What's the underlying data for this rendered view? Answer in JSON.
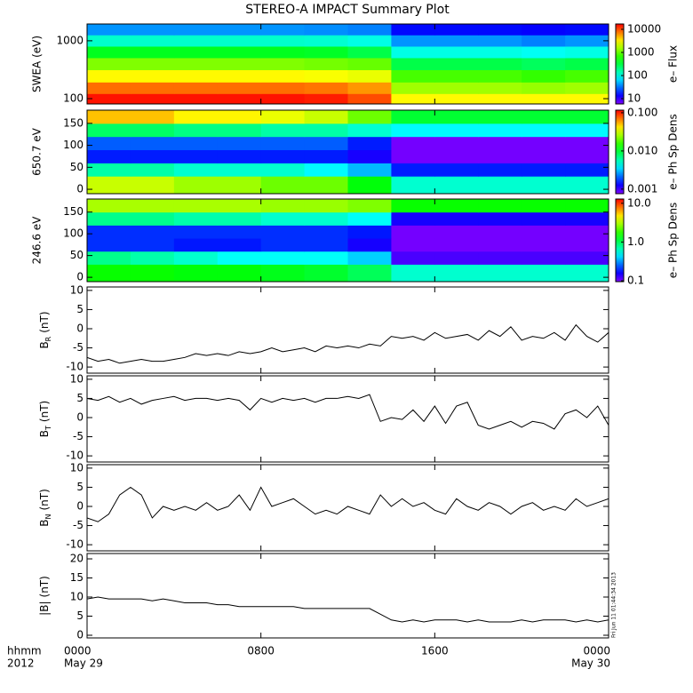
{
  "figure": {
    "title": "STEREO-A IMPACT Summary Plot",
    "xlim": [
      0,
      24
    ],
    "xticks": [
      {
        "value": 0,
        "label": "0000"
      },
      {
        "value": 8,
        "label": "0800"
      },
      {
        "value": 16,
        "label": "1600"
      },
      {
        "value": 24,
        "label": "0000"
      }
    ],
    "dates": [
      {
        "value": 0,
        "label": "May 29"
      },
      {
        "value": 24,
        "label": "May 30"
      }
    ],
    "time_format": "hhmm",
    "year": "2012",
    "timestamp": "Fri Jun 11 01:44:34 2013",
    "x": [
      0,
      0.5,
      1,
      1.5,
      2,
      2.5,
      3,
      3.5,
      4,
      4.5,
      5,
      5.5,
      6,
      6.5,
      7,
      7.5,
      8,
      8.5,
      9,
      9.5,
      10,
      10.5,
      11,
      11.5,
      12,
      12.5,
      13,
      13.5,
      14,
      14.5,
      15,
      15.5,
      16,
      16.5,
      17,
      17.5,
      18,
      18.5,
      19,
      19.5,
      20,
      20.5,
      21,
      21.5,
      22,
      22.5,
      23,
      23.5,
      24
    ]
  },
  "chart_data": [
    {
      "type": "heatmap",
      "ylabel": "SWEA (eV)",
      "log": true,
      "ylim": [
        81,
        1950
      ],
      "yticks": [
        100,
        1000
      ],
      "x": [
        1,
        3,
        5,
        7,
        9,
        11,
        13,
        15,
        17,
        19,
        21,
        23
      ],
      "y": [
        100,
        150,
        250,
        400,
        650,
        1000,
        1600
      ],
      "zlim": [
        5.9,
        17000
      ],
      "zticks": [
        10,
        100,
        1000,
        10000
      ],
      "zlabel": "e– Flux",
      "values": [
        [
          15000,
          15000,
          15000,
          15000,
          15000,
          14000,
          10000,
          3000,
          3000,
          3000,
          3000,
          3000
        ],
        [
          8000,
          8000,
          8000,
          8000,
          8000,
          7500,
          6000,
          1500,
          1500,
          1500,
          1400,
          1500
        ],
        [
          3000,
          3000,
          3000,
          3000,
          3000,
          2800,
          2500,
          800,
          800,
          800,
          700,
          800
        ],
        [
          1200,
          1200,
          1200,
          1200,
          1200,
          1100,
          1000,
          300,
          300,
          300,
          260,
          300
        ],
        [
          400,
          400,
          400,
          400,
          400,
          380,
          300,
          100,
          100,
          100,
          90,
          100
        ],
        [
          120,
          120,
          120,
          120,
          120,
          115,
          100,
          40,
          40,
          40,
          35,
          40
        ],
        [
          40,
          40,
          40,
          40,
          40,
          38,
          35,
          15,
          15,
          15,
          14,
          15
        ]
      ]
    },
    {
      "type": "heatmap",
      "ylabel": "650.7 eV",
      "log": false,
      "ylim": [
        -10,
        180
      ],
      "yticks": [
        0,
        50,
        100,
        150
      ],
      "x": [
        1,
        3,
        5,
        7,
        9,
        11,
        13,
        15,
        17,
        19,
        21,
        23
      ],
      "y": [
        15,
        45,
        75,
        105,
        135,
        165
      ],
      "zlim": [
        0.00076,
        0.117
      ],
      "zticks": [
        {
          "value": 0.001,
          "label": "0.001"
        },
        {
          "value": 0.01,
          "label": "0.010"
        },
        {
          "value": 0.1,
          "label": "0.100"
        }
      ],
      "zlabel": "e– Ph Sp Dens",
      "values": [
        [
          0.03,
          0.03,
          0.025,
          0.025,
          0.02,
          0.02,
          0.012,
          0.005,
          0.005,
          0.005,
          0.005,
          0.005
        ],
        [
          0.006,
          0.006,
          0.005,
          0.005,
          0.005,
          0.004,
          0.003,
          0.0015,
          0.0015,
          0.0015,
          0.0015,
          0.0015
        ],
        [
          0.0015,
          0.0015,
          0.0015,
          0.0015,
          0.0015,
          0.0015,
          0.0012,
          0.0008,
          0.0008,
          0.0008,
          0.0008,
          0.0008
        ],
        [
          0.002,
          0.002,
          0.002,
          0.002,
          0.002,
          0.002,
          0.0015,
          0.0008,
          0.0008,
          0.0008,
          0.0008,
          0.0008
        ],
        [
          0.008,
          0.008,
          0.007,
          0.007,
          0.006,
          0.006,
          0.005,
          0.004,
          0.004,
          0.004,
          0.004,
          0.004
        ],
        [
          0.05,
          0.05,
          0.04,
          0.04,
          0.035,
          0.03,
          0.02,
          0.01,
          0.01,
          0.01,
          0.01,
          0.01
        ]
      ]
    },
    {
      "type": "heatmap",
      "ylabel": "246.6 eV",
      "log": false,
      "ylim": [
        -10,
        180
      ],
      "yticks": [
        0,
        50,
        100,
        150
      ],
      "x": [
        1,
        3,
        5,
        7,
        9,
        11,
        13,
        15,
        17,
        19,
        21,
        23
      ],
      "y": [
        15,
        45,
        75,
        105,
        135,
        165
      ],
      "zlim": [
        0.095,
        12.9
      ],
      "zticks": [
        0.1,
        {
          "value": 1,
          "label": "1.0"
        },
        {
          "value": 10,
          "label": "10.0"
        }
      ],
      "zlabel": "e– Ph Sp Dens",
      "values": [
        [
          1.5,
          1.5,
          1.4,
          1.4,
          1.3,
          1.2,
          1,
          0.6,
          0.6,
          0.6,
          0.6,
          0.6
        ],
        [
          0.8,
          0.7,
          0.6,
          0.5,
          0.5,
          0.5,
          0.4,
          0.12,
          0.12,
          0.12,
          0.12,
          0.12
        ],
        [
          0.2,
          0.2,
          0.18,
          0.18,
          0.2,
          0.2,
          0.15,
          0.1,
          0.1,
          0.1,
          0.1,
          0.1
        ],
        [
          0.2,
          0.2,
          0.2,
          0.2,
          0.2,
          0.2,
          0.18,
          0.1,
          0.1,
          0.1,
          0.1,
          0.1
        ],
        [
          0.8,
          0.8,
          0.7,
          0.7,
          0.6,
          0.6,
          0.5,
          0.15,
          0.15,
          0.15,
          0.15,
          0.15
        ],
        [
          3,
          3,
          3,
          3,
          2.8,
          2.8,
          2.5,
          1.5,
          1.5,
          1.5,
          1.5,
          1.5
        ]
      ]
    },
    {
      "type": "line",
      "ylabel": {
        "text": "B",
        "sub": "R",
        "unit": "(nT)"
      },
      "ylim": [
        -11.6,
        10.9
      ],
      "yticks": [
        -10,
        -5,
        0,
        5,
        10
      ],
      "values": [
        -7.5,
        -8.5,
        -8,
        -9,
        -8.5,
        -8,
        -8.5,
        -8.5,
        -8,
        -7.5,
        -6.5,
        -7,
        -6.5,
        -7,
        -6,
        -6.5,
        -6,
        -5,
        -6,
        -5.5,
        -5,
        -6,
        -4.5,
        -5,
        -4.5,
        -5,
        -4,
        -4.5,
        -2,
        -2.5,
        -2,
        -3,
        -1,
        -2.5,
        -2,
        -1.5,
        -3,
        -0.5,
        -2,
        0.5,
        -3,
        -2,
        -2.5,
        -1,
        -3,
        1,
        -2,
        -3.5,
        -1
      ]
    },
    {
      "type": "line",
      "ylabel": {
        "text": "B",
        "sub": "T",
        "unit": "(nT)"
      },
      "ylim": [
        -11.6,
        10.9
      ],
      "yticks": [
        -10,
        -5,
        0,
        5,
        10
      ],
      "values": [
        5,
        4.5,
        5.5,
        4,
        5,
        3.5,
        4.5,
        5,
        5.5,
        4.5,
        5,
        5,
        4.5,
        5,
        4.5,
        2,
        5,
        4,
        5,
        4.5,
        5,
        4,
        5,
        5,
        5.5,
        5,
        6,
        -1,
        0,
        -0.5,
        2,
        -1,
        3,
        -1.5,
        3,
        4,
        -2,
        -3,
        -2,
        -1,
        -2.5,
        -1,
        -1.5,
        -3,
        1,
        2,
        0,
        3,
        -2
      ]
    },
    {
      "type": "line",
      "ylabel": {
        "text": "B",
        "sub": "N",
        "unit": "(nT)"
      },
      "ylim": [
        -11.6,
        10.9
      ],
      "yticks": [
        -10,
        -5,
        0,
        5,
        10
      ],
      "values": [
        -3,
        -4,
        -2,
        3,
        5,
        3,
        -3,
        0,
        -1,
        0,
        -1,
        1,
        -1,
        0,
        3,
        -1,
        5,
        0,
        1,
        2,
        0,
        -2,
        -1,
        -2,
        0,
        -1,
        -2,
        3,
        0,
        2,
        0,
        1,
        -1,
        -2,
        2,
        0,
        -1,
        1,
        0,
        -2,
        0,
        1,
        -1,
        0,
        -1,
        2,
        0,
        1,
        2
      ]
    },
    {
      "type": "line",
      "ylabel": {
        "text": "|B|",
        "sub": "",
        "unit": "(nT)"
      },
      "ylim": [
        -0.7,
        21.4
      ],
      "yticks": [
        0,
        5,
        10,
        15,
        20
      ],
      "values": [
        9.5,
        10,
        9.5,
        9.5,
        9.5,
        9.5,
        9,
        9.5,
        9,
        8.5,
        8.5,
        8.5,
        8,
        8,
        7.5,
        7.5,
        7.5,
        7.5,
        7.5,
        7.5,
        7,
        7,
        7,
        7,
        7,
        7,
        7,
        5.5,
        4,
        3.5,
        4,
        3.5,
        4,
        4,
        4,
        3.5,
        4,
        3.5,
        3.5,
        3.5,
        4,
        3.5,
        4,
        4,
        4,
        3.5,
        4,
        3.5,
        4
      ]
    }
  ]
}
